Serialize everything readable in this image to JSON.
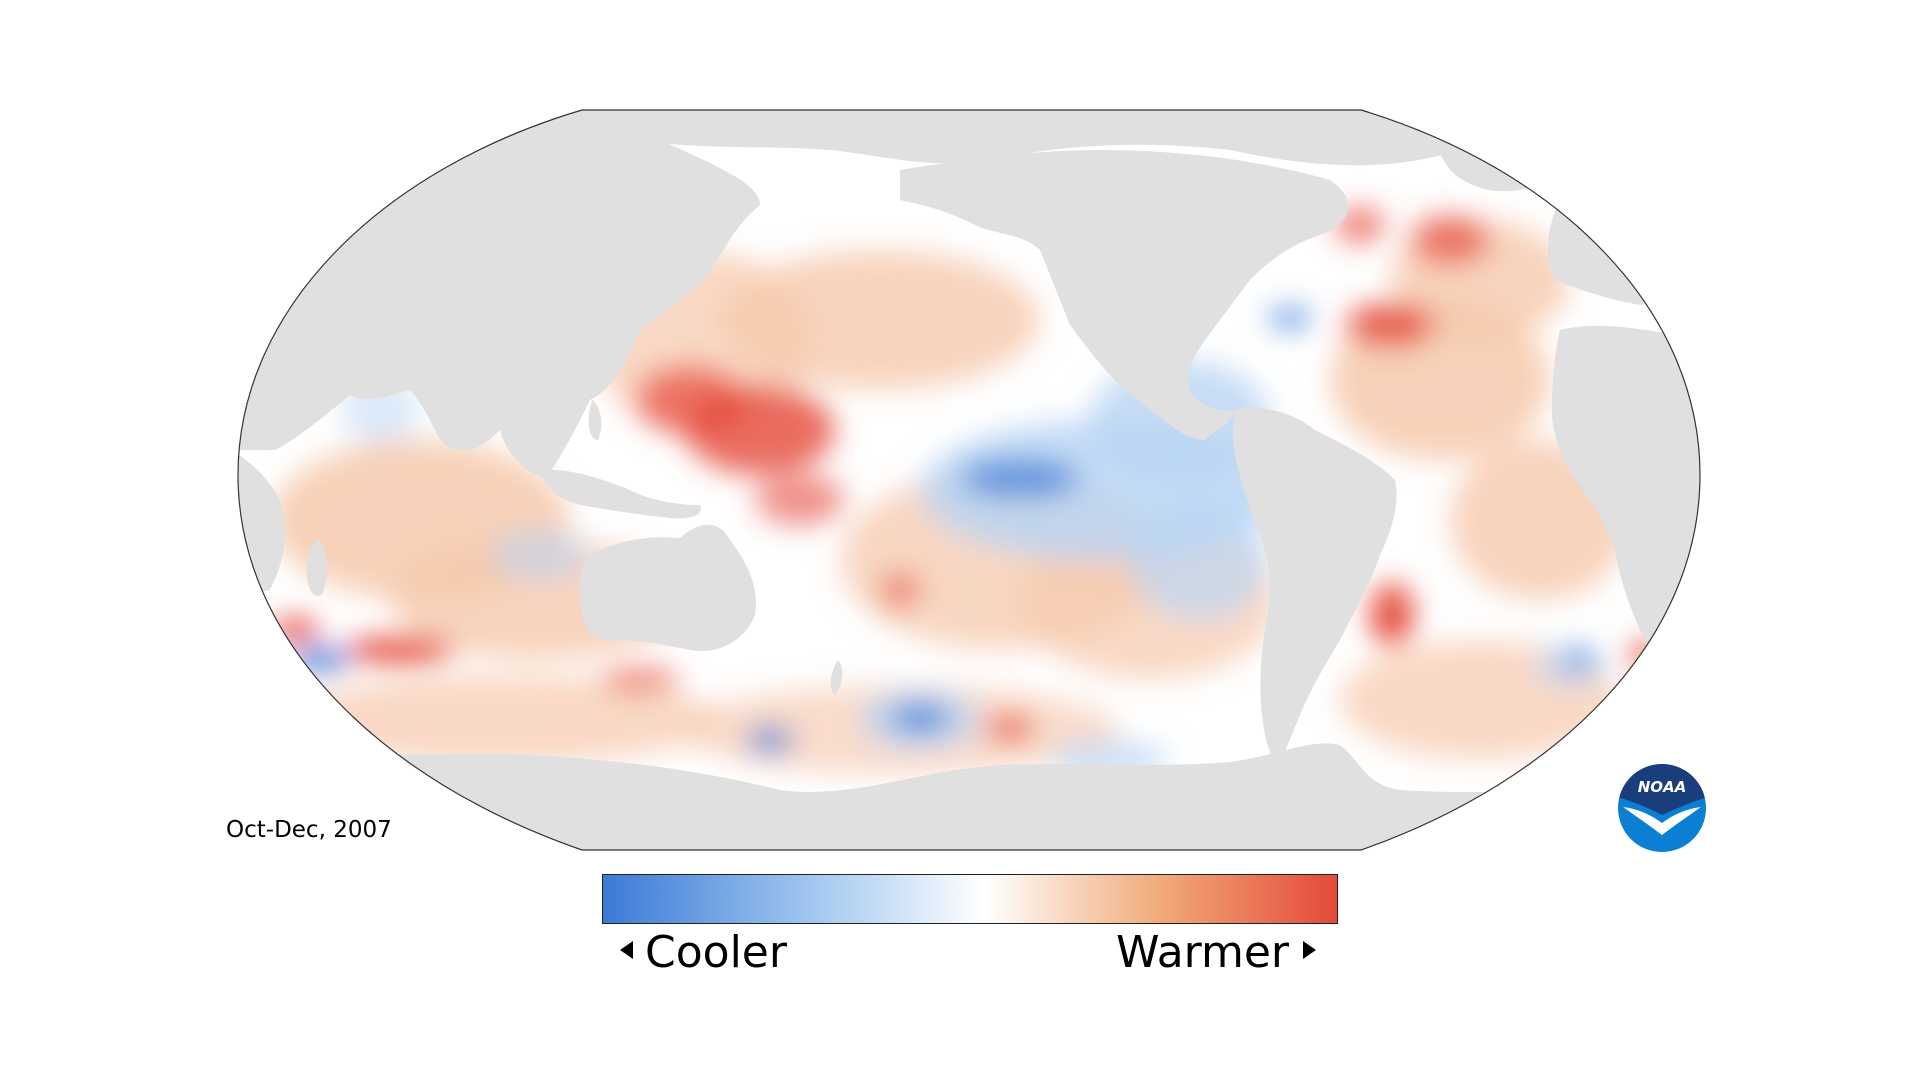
{
  "map": {
    "subject": "sea surface temperature anomaly",
    "projection": "Robinson, Pacific-centered",
    "period": "Oct-Dec, 2007",
    "colors": {
      "land": "#e0e0e0",
      "ocean_neutral": "#ffffff",
      "cool_strong": "#3a7ad7",
      "cool_light": "#b9d5f3",
      "warm_light": "#f6c9ad",
      "warm_strong": "#e5493a",
      "outline": "#333333"
    },
    "patterns": {
      "warm_regions": [
        "western tropical Pacific",
        "North Atlantic",
        "southwest Atlantic off South America",
        "southern Indian Ocean band"
      ],
      "cool_regions": [
        "eastern equatorial Pacific",
        "Southern Ocean patches south of Australia"
      ]
    }
  },
  "legend": {
    "cool_label": "Cooler",
    "warm_label": "Warmer",
    "gradient": [
      "#3a7ad7",
      "#9cc3ee",
      "#ffffff",
      "#f0aa78",
      "#e5493a"
    ]
  },
  "logo": {
    "text": "NOAA",
    "icon": "noaa-logo-icon",
    "colors": {
      "top": "#1a3d7c",
      "bottom": "#0a7fd3",
      "bird": "#ffffff"
    }
  }
}
